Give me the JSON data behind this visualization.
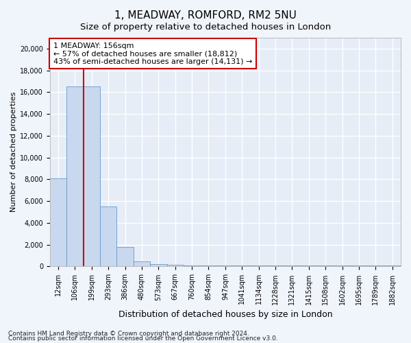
{
  "title1": "1, MEADWAY, ROMFORD, RM2 5NU",
  "title2": "Size of property relative to detached houses in London",
  "xlabel": "Distribution of detached houses by size in London",
  "ylabel": "Number of detached properties",
  "bar_color": "#c8d8ee",
  "bar_edge_color": "#6699cc",
  "categories": [
    "12sqm",
    "106sqm",
    "199sqm",
    "293sqm",
    "386sqm",
    "480sqm",
    "573sqm",
    "667sqm",
    "760sqm",
    "854sqm",
    "947sqm",
    "1041sqm",
    "1134sqm",
    "1228sqm",
    "1321sqm",
    "1415sqm",
    "1508sqm",
    "1602sqm",
    "1695sqm",
    "1789sqm",
    "1882sqm"
  ],
  "values": [
    8100,
    16500,
    16500,
    5500,
    1800,
    500,
    200,
    150,
    100,
    100,
    100,
    80,
    80,
    80,
    80,
    80,
    60,
    60,
    60,
    60,
    60
  ],
  "ylim": [
    0,
    21000
  ],
  "yticks": [
    0,
    2000,
    4000,
    6000,
    8000,
    10000,
    12000,
    14000,
    16000,
    18000,
    20000
  ],
  "red_line_x": 1.5,
  "annotation_text": "1 MEADWAY: 156sqm\n← 57% of detached houses are smaller (18,812)\n43% of semi-detached houses are larger (14,131) →",
  "annotation_box_color": "#ffffff",
  "annotation_box_edge": "#cc0000",
  "red_line_color": "#cc0000",
  "footnote1": "Contains HM Land Registry data © Crown copyright and database right 2024.",
  "footnote2": "Contains public sector information licensed under the Open Government Licence v3.0.",
  "bg_color": "#f0f4fb",
  "plot_bg_color": "#e6edf7",
  "grid_color": "#ffffff",
  "title1_fontsize": 11,
  "title2_fontsize": 9.5,
  "xlabel_fontsize": 9,
  "ylabel_fontsize": 8,
  "tick_fontsize": 7,
  "annot_fontsize": 8,
  "footnote_fontsize": 6.5
}
